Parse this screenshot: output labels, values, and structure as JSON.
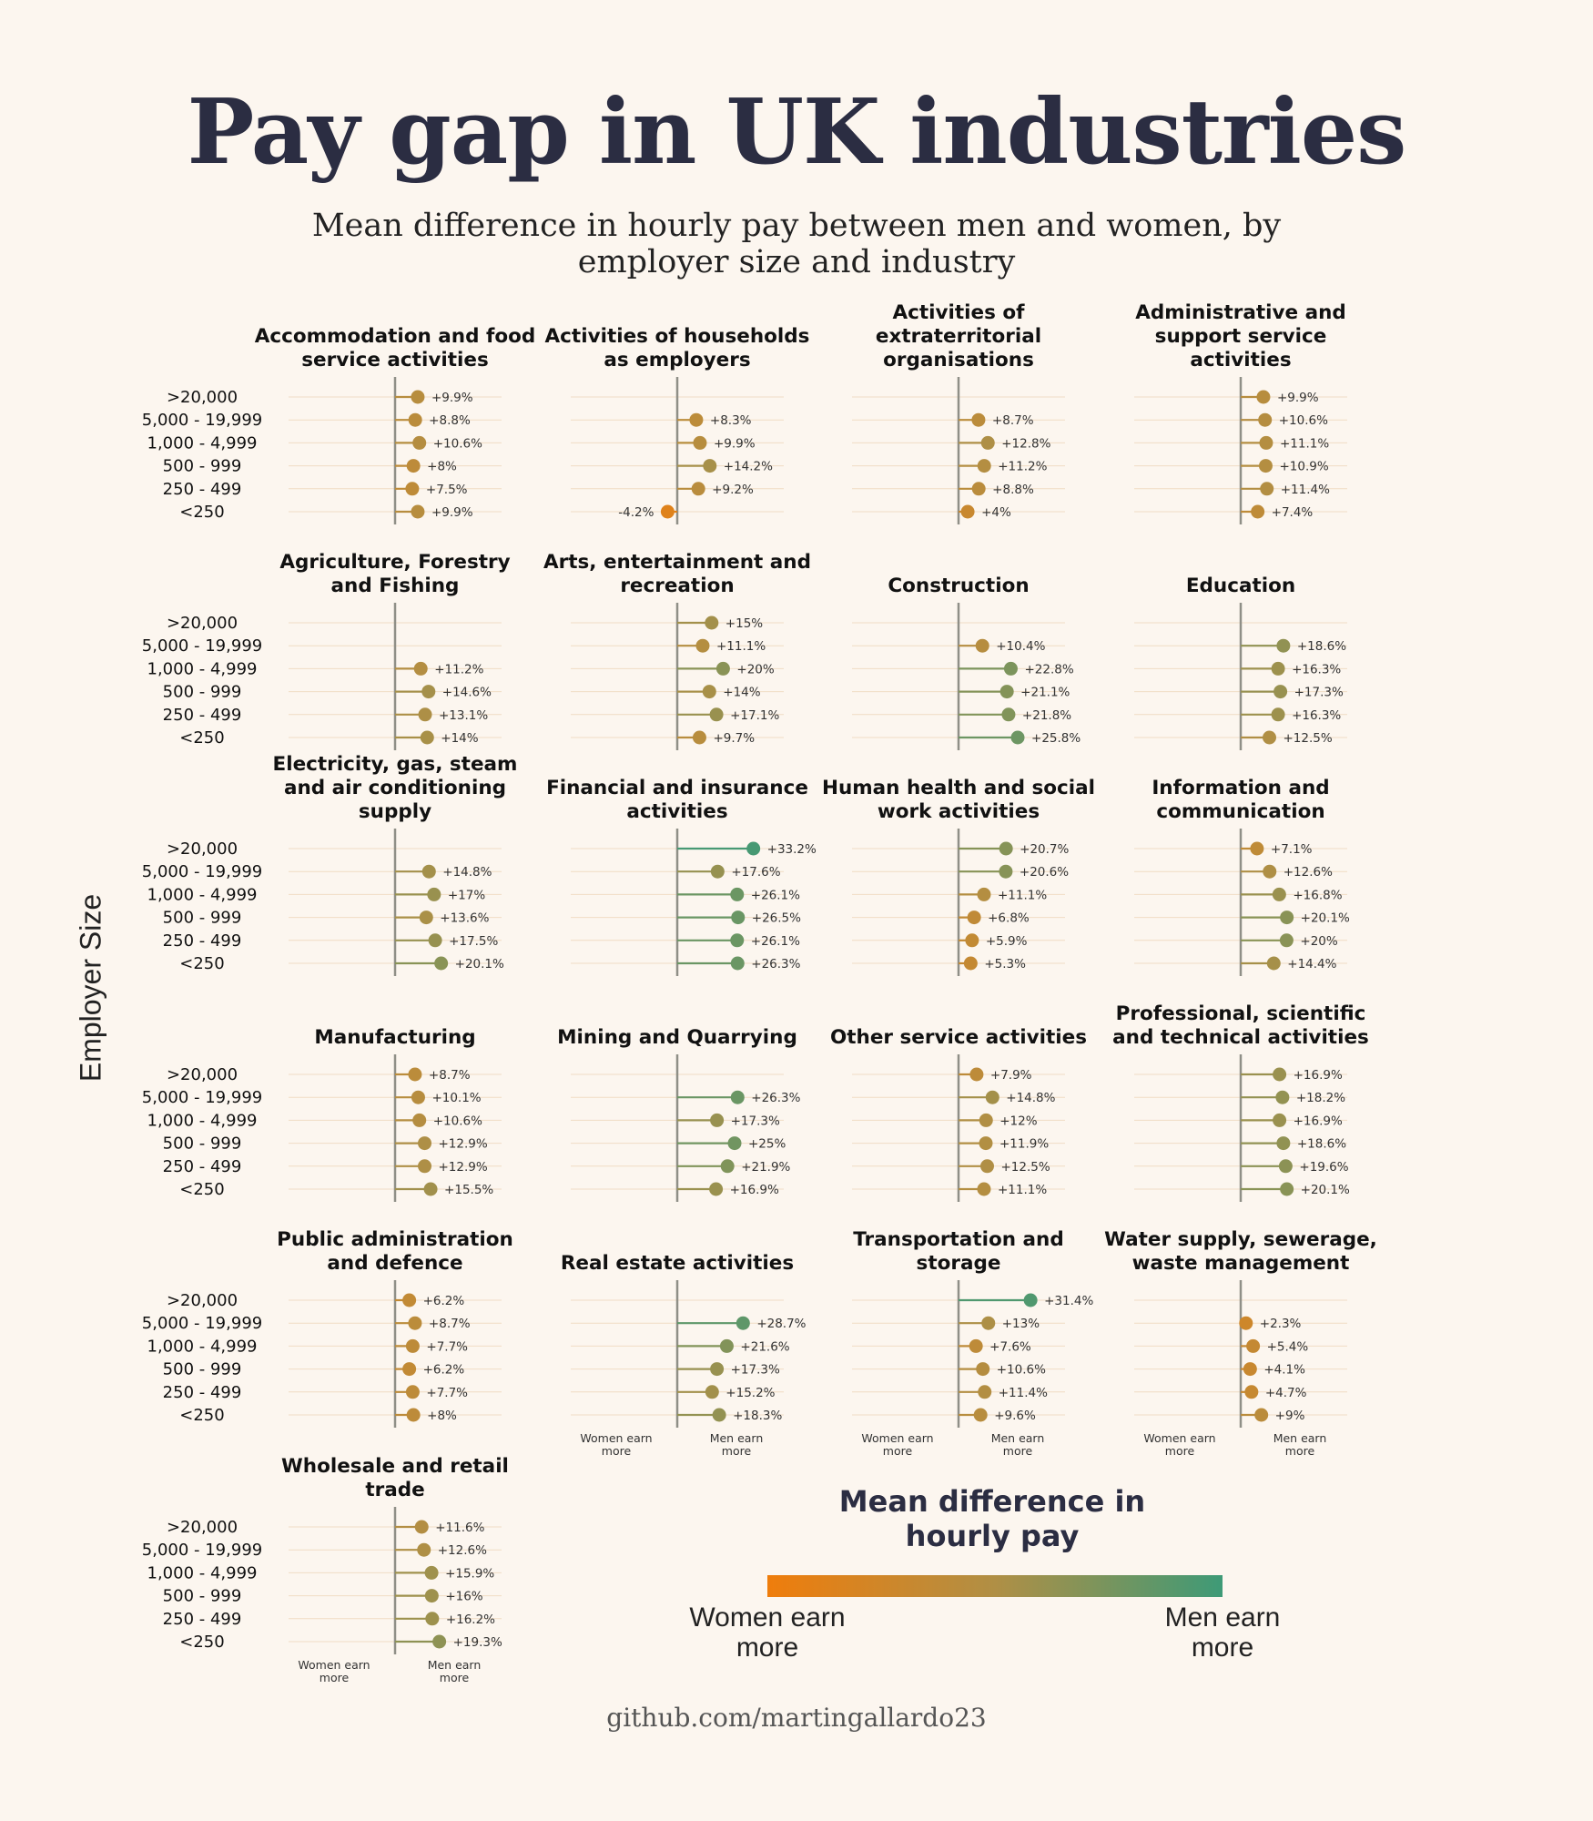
{
  "title": "Pay gap in UK industries",
  "subtitle": "Mean difference in hourly pay between men and women, by employer size and industry",
  "credit": "github.com/martingallardo23",
  "legend": {
    "title": "Mean difference in hourly pay",
    "left_label": "Women earn more",
    "right_label": "Men earn more",
    "colors": {
      "women": "#ef7d0c",
      "mid": "#b08f45",
      "men": "#3e9a77"
    }
  },
  "chart_data": {
    "type": "lollipop",
    "ylabel": "Employer Size",
    "xlim": [
      -34,
      34
    ],
    "axis_labels": {
      "left": "Women earn more",
      "right": "Men earn more"
    },
    "categories": [
      ">20,000",
      "5,000 - 19,999",
      "1,000 - 4,999",
      "500 - 999",
      "250 - 499",
      "<250"
    ],
    "panels": [
      {
        "name": "Accommodation and food service activities",
        "values": [
          9.9,
          8.8,
          10.6,
          8,
          7.5,
          9.9
        ],
        "labels": [
          "+9.9%",
          "+8.8%",
          "+10.6%",
          "+8%",
          "+7.5%",
          "+9.9%"
        ]
      },
      {
        "name": "Activities of households as employers",
        "values": [
          null,
          8.3,
          9.9,
          14.2,
          9.2,
          -4.2
        ],
        "labels": [
          "",
          "+8.3%",
          "+9.9%",
          "+14.2%",
          "+9.2%",
          "-4.2%"
        ]
      },
      {
        "name": "Activities of extraterritorial organisations",
        "values": [
          null,
          8.7,
          12.8,
          11.2,
          8.8,
          4
        ],
        "labels": [
          "",
          "+8.7%",
          "+12.8%",
          "+11.2%",
          "+8.8%",
          "+4%"
        ]
      },
      {
        "name": "Administrative and support service activities",
        "values": [
          9.9,
          10.6,
          11.1,
          10.9,
          11.4,
          7.4
        ],
        "labels": [
          "+9.9%",
          "+10.6%",
          "+11.1%",
          "+10.9%",
          "+11.4%",
          "+7.4%"
        ]
      },
      {
        "name": "Agriculture, Forestry and Fishing",
        "values": [
          null,
          null,
          11.2,
          14.6,
          13.1,
          14
        ],
        "labels": [
          "",
          "",
          "+11.2%",
          "+14.6%",
          "+13.1%",
          "+14%"
        ]
      },
      {
        "name": "Arts, entertainment and recreation",
        "values": [
          15,
          11.1,
          20,
          14,
          17.1,
          9.7
        ],
        "labels": [
          "+15%",
          "+11.1%",
          "+20%",
          "+14%",
          "+17.1%",
          "+9.7%"
        ]
      },
      {
        "name": "Construction",
        "values": [
          null,
          10.4,
          22.8,
          21.1,
          21.8,
          25.8
        ],
        "labels": [
          "",
          "+10.4%",
          "+22.8%",
          "+21.1%",
          "+21.8%",
          "+25.8%"
        ]
      },
      {
        "name": "Education",
        "values": [
          null,
          18.6,
          16.3,
          17.3,
          16.3,
          12.5
        ],
        "labels": [
          "",
          "+18.6%",
          "+16.3%",
          "+17.3%",
          "+16.3%",
          "+12.5%"
        ]
      },
      {
        "name": "Electricity, gas, steam and air conditioning supply",
        "values": [
          null,
          14.8,
          17,
          13.6,
          17.5,
          20.1
        ],
        "labels": [
          "",
          "+14.8%",
          "+17%",
          "+13.6%",
          "+17.5%",
          "+20.1%"
        ]
      },
      {
        "name": "Financial and insurance activities",
        "values": [
          33.2,
          17.6,
          26.1,
          26.5,
          26.1,
          26.3
        ],
        "labels": [
          "+33.2%",
          "+17.6%",
          "+26.1%",
          "+26.5%",
          "+26.1%",
          "+26.3%"
        ]
      },
      {
        "name": "Human health and social work activities",
        "values": [
          20.7,
          20.6,
          11.1,
          6.8,
          5.9,
          5.3
        ],
        "labels": [
          "+20.7%",
          "+20.6%",
          "+11.1%",
          "+6.8%",
          "+5.9%",
          "+5.3%"
        ]
      },
      {
        "name": "Information and communication",
        "values": [
          7.1,
          12.6,
          16.8,
          20.1,
          20,
          14.4
        ],
        "labels": [
          "+7.1%",
          "+12.6%",
          "+16.8%",
          "+20.1%",
          "+20%",
          "+14.4%"
        ]
      },
      {
        "name": "Manufacturing",
        "values": [
          8.7,
          10.1,
          10.6,
          12.9,
          12.9,
          15.5
        ],
        "labels": [
          "+8.7%",
          "+10.1%",
          "+10.6%",
          "+12.9%",
          "+12.9%",
          "+15.5%"
        ]
      },
      {
        "name": "Mining and Quarrying",
        "values": [
          null,
          26.3,
          17.3,
          25,
          21.9,
          16.9
        ],
        "labels": [
          "",
          "+26.3%",
          "+17.3%",
          "+25%",
          "+21.9%",
          "+16.9%"
        ]
      },
      {
        "name": "Other service activities",
        "values": [
          7.9,
          14.8,
          12,
          11.9,
          12.5,
          11.1
        ],
        "labels": [
          "+7.9%",
          "+14.8%",
          "+12%",
          "+11.9%",
          "+12.5%",
          "+11.1%"
        ]
      },
      {
        "name": "Professional, scientific and technical activities",
        "values": [
          16.9,
          18.2,
          16.9,
          18.6,
          19.6,
          20.1
        ],
        "labels": [
          "+16.9%",
          "+18.2%",
          "+16.9%",
          "+18.6%",
          "+19.6%",
          "+20.1%"
        ]
      },
      {
        "name": "Public administration and defence",
        "values": [
          6.2,
          8.7,
          7.7,
          6.2,
          7.7,
          8
        ],
        "labels": [
          "+6.2%",
          "+8.7%",
          "+7.7%",
          "+6.2%",
          "+7.7%",
          "+8%"
        ]
      },
      {
        "name": "Real estate activities",
        "values": [
          null,
          28.7,
          21.6,
          17.3,
          15.2,
          18.3
        ],
        "labels": [
          "",
          "+28.7%",
          "+21.6%",
          "+17.3%",
          "+15.2%",
          "+18.3%"
        ]
      },
      {
        "name": "Transportation and storage",
        "values": [
          31.4,
          13,
          7.6,
          10.6,
          11.4,
          9.6
        ],
        "labels": [
          "+31.4%",
          "+13%",
          "+7.6%",
          "+10.6%",
          "+11.4%",
          "+9.6%"
        ]
      },
      {
        "name": "Water supply, sewerage, waste management",
        "values": [
          null,
          2.3,
          5.4,
          4.1,
          4.7,
          9
        ],
        "labels": [
          "",
          "+2.3%",
          "+5.4%",
          "+4.1%",
          "+4.7%",
          "+9%"
        ]
      },
      {
        "name": "Wholesale and retail trade",
        "values": [
          11.6,
          12.6,
          15.9,
          16,
          16.2,
          19.3
        ],
        "labels": [
          "+11.6%",
          "+12.6%",
          "+15.9%",
          "+16%",
          "+16.2%",
          "+19.3%"
        ]
      }
    ]
  }
}
